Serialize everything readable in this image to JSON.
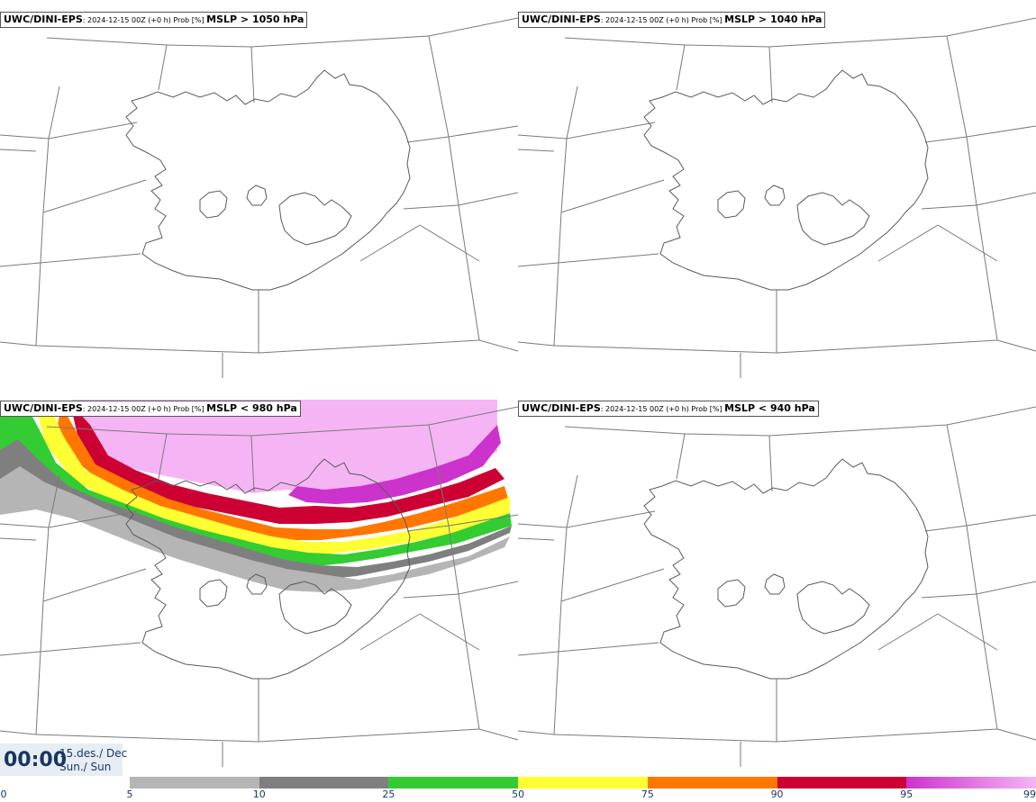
{
  "panels": [
    {
      "model": "UWC/DINI-EPS",
      "meta": ": 2024-12-15 00Z (+0 h) Prob [%] ",
      "field": "MSLP > 1050 hPa"
    },
    {
      "model": "UWC/DINI-EPS",
      "meta": ": 2024-12-15 00Z (+0 h) Prob [%] ",
      "field": "MSLP > 1040 hPa"
    },
    {
      "model": "UWC/DINI-EPS",
      "meta": ": 2024-12-15 00Z (+0 h) Prob [%] ",
      "field": "MSLP < 980 hPa"
    },
    {
      "model": "UWC/DINI-EPS",
      "meta": ": 2024-12-15 00Z (+0 h) Prob [%] ",
      "field": "MSLP < 940 hPa"
    }
  ],
  "clock": {
    "time": "00:00",
    "date_line1": "15.des./ Dec",
    "date_line2": "Sun./ Sun"
  },
  "legend": {
    "ticks": [
      "0",
      "5",
      "10",
      "25",
      "50",
      "75",
      "90",
      "95",
      "99"
    ],
    "colors": [
      "#ffffff",
      "#b5b5b5",
      "#7f7f7f",
      "#33cc33",
      "#ffff33",
      "#ff7700",
      "#cc0033",
      "#cc33cc",
      "#f5b5f5"
    ]
  }
}
